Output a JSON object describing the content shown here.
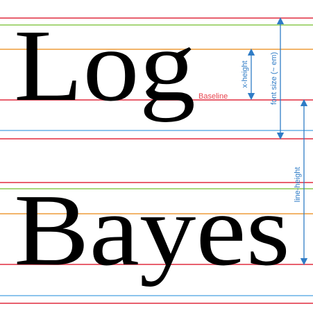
{
  "words": {
    "top": "Log",
    "bottom": "Bayes"
  },
  "labels": {
    "baseline": "Baseline",
    "x_height": "x-height",
    "font_size": "font size (~ em)",
    "line_height": "line-height"
  },
  "colors": {
    "baseline": "#e8606e",
    "x_height": "#f2b46a",
    "cap_height": "#a8d67a",
    "descender": "#8cc4ec",
    "annotation": "#2f7cc6",
    "baseline_label": "#e8454f"
  }
}
